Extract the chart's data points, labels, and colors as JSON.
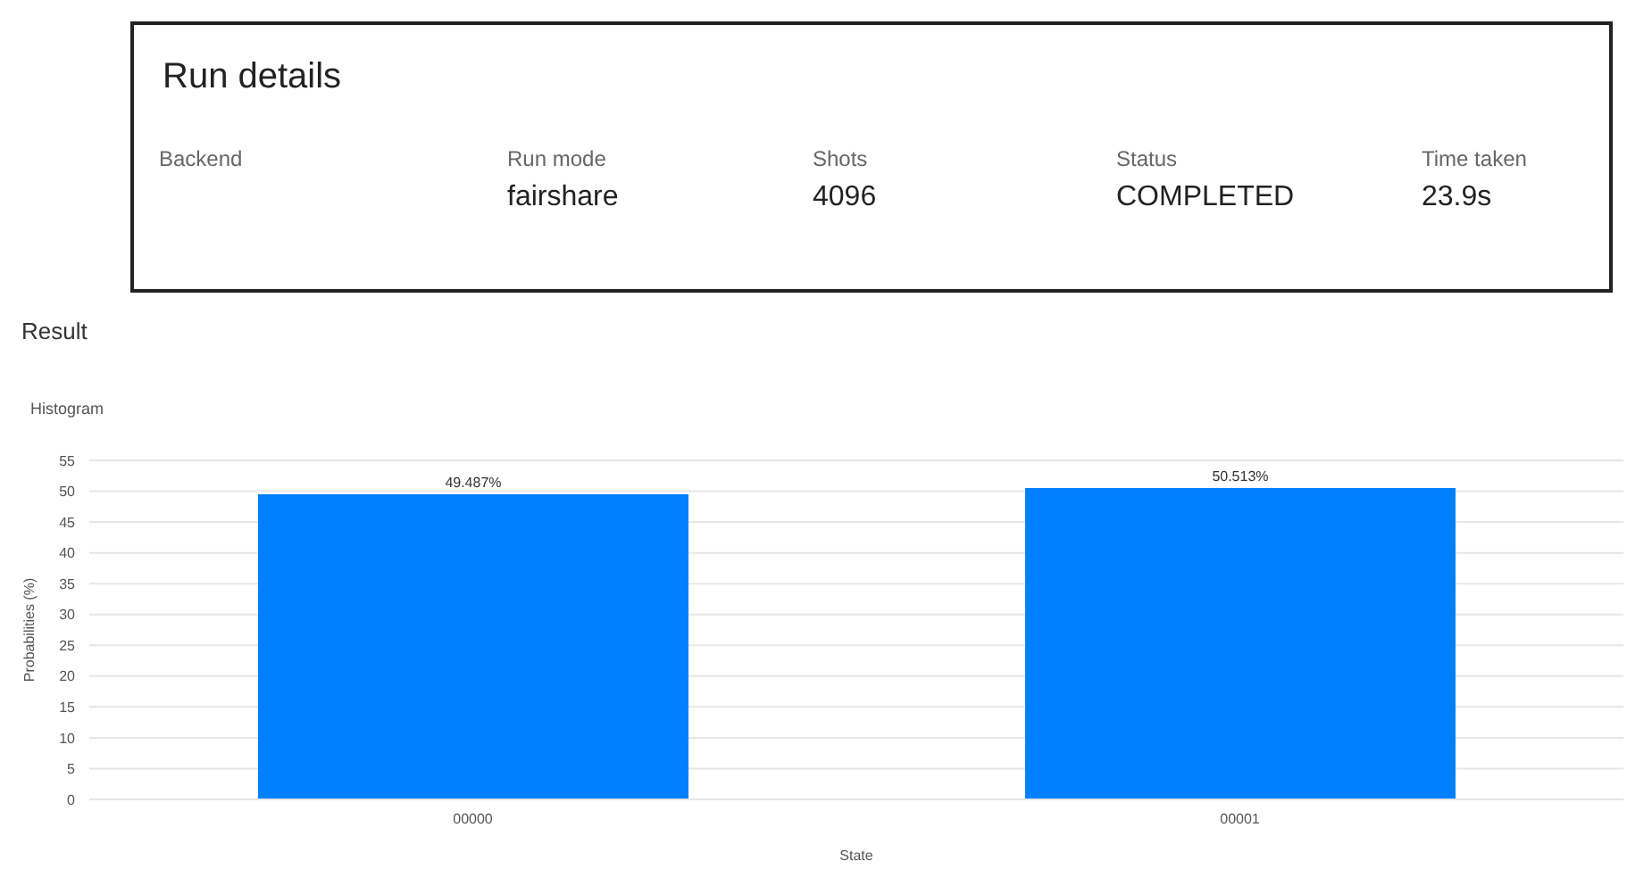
{
  "chart_data": [
    {
      "type": "other",
      "title": "Run details",
      "categories": [
        "Backend",
        "Run mode",
        "Shots",
        "Status",
        "Time taken"
      ],
      "value_labels": [
        null,
        "fairshare",
        "4096",
        "COMPLETED",
        "23.9s"
      ]
    },
    {
      "type": "bar",
      "title": "Result",
      "subtitle": "Histogram",
      "xlabel": "State",
      "ylabel": "Probabilities (%)",
      "categories": [
        "00000",
        "00001"
      ],
      "values": [
        49.487,
        50.513
      ],
      "value_labels": [
        "49.487%",
        "50.513%"
      ],
      "color": "#0080ff",
      "ylim": [
        0,
        55
      ],
      "yticks": [
        0,
        5,
        10,
        15,
        20,
        25,
        30,
        35,
        40,
        45,
        50,
        55
      ],
      "grid": "y"
    }
  ]
}
